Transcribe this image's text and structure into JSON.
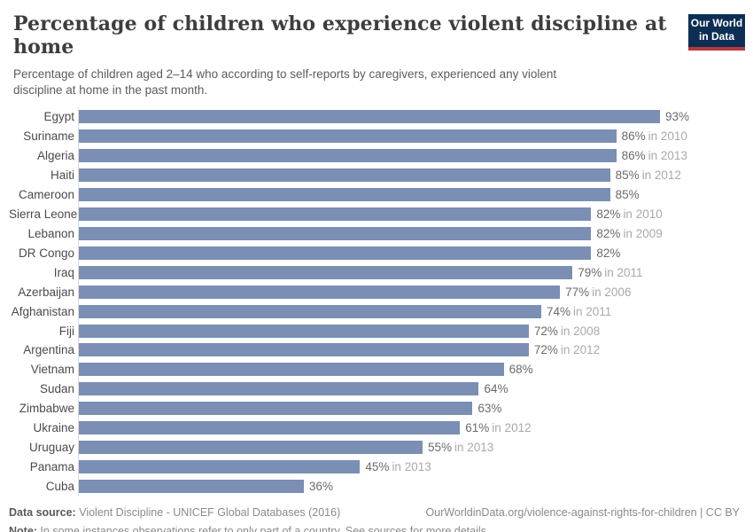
{
  "header": {
    "title": "Percentage of children who experience violent discipline at home",
    "subtitle": "Percentage of children aged 2–14 who according to self-reports by caregivers, experienced any violent discipline at home in the past month.",
    "logo": {
      "line1": "Our World",
      "line2": "in Data",
      "navy_color": "#0d2e54",
      "red_color": "#b6383f"
    }
  },
  "chart_data": {
    "type": "bar",
    "orientation": "horizontal",
    "title": "Percentage of children who experience violent discipline at home",
    "categories": [
      "Egypt",
      "Suriname",
      "Algeria",
      "Haiti",
      "Cameroon",
      "Sierra Leone",
      "Lebanon",
      "DR Congo",
      "Iraq",
      "Azerbaijan",
      "Afghanistan",
      "Fiji",
      "Argentina",
      "Vietnam",
      "Sudan",
      "Zimbabwe",
      "Ukraine",
      "Uruguay",
      "Panama",
      "Cuba"
    ],
    "values": [
      93,
      86,
      86,
      85,
      85,
      82,
      82,
      82,
      79,
      77,
      74,
      72,
      72,
      68,
      64,
      63,
      61,
      55,
      45,
      36
    ],
    "year_labels": [
      "",
      "in 2010",
      "in 2013",
      "in 2012",
      "",
      "in 2010",
      "in 2009",
      "",
      "in 2011",
      "in 2006",
      "in 2011",
      "in 2008",
      "in 2012",
      "",
      "",
      "",
      "in 2012",
      "in 2013",
      "in 2013",
      ""
    ],
    "value_suffix": "%",
    "xlim": [
      0,
      93
    ],
    "grid": "off",
    "legend": "none",
    "bar_color": "#7a8fb3",
    "axis_line_color": "#dddddd"
  },
  "footer": {
    "source_label": "Data source:",
    "source_text": " Violent Discipline - UNICEF Global Databases (2016)",
    "url_text": "OurWorldinData.org/violence-against-rights-for-children | CC BY",
    "note_label": "Note:",
    "note_text": " In some instances observations refer to only part of a country. See sources for more details."
  }
}
